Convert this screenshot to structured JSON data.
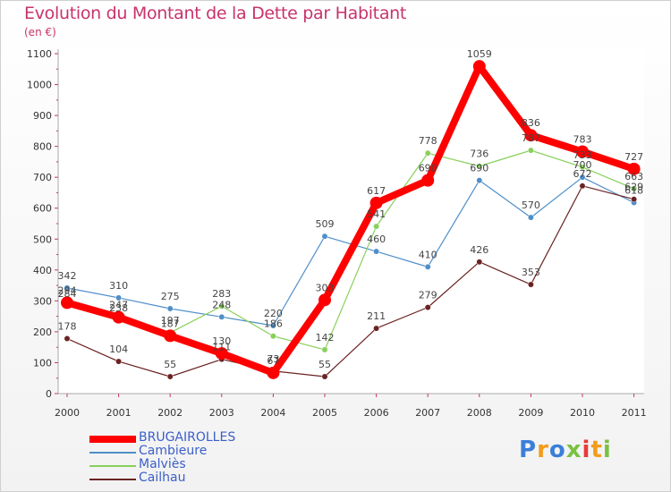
{
  "header": {
    "title": "Evolution du Montant de la Dette par Habitant",
    "subtitle": "(en €)"
  },
  "logo": {
    "text": "Proxiti",
    "colors": [
      "#3b7fd9",
      "#f39c1b",
      "#3b7fd9",
      "#7ac142",
      "#e63b3b",
      "#f39c1b",
      "#7ac142"
    ]
  },
  "chart_data": {
    "type": "line",
    "title": "Evolution du Montant de la Dette par Habitant",
    "subtitle": "(en €)",
    "xlabel": "",
    "ylabel": "",
    "ylim": [
      0,
      1100
    ],
    "yticks": [
      0,
      100,
      200,
      300,
      400,
      500,
      600,
      700,
      800,
      900,
      1000,
      1100
    ],
    "categories": [
      "2000",
      "2001",
      "2002",
      "2003",
      "2004",
      "2005",
      "2006",
      "2007",
      "2008",
      "2009",
      "2010",
      "2011"
    ],
    "grid": false,
    "legend": "bottom-left",
    "series": [
      {
        "name": "BRUGAIROLLES",
        "color": "#ff0000",
        "values": [
          294,
          247,
          187,
          130,
          67,
          303,
          617,
          690,
          1059,
          836,
          783,
          727
        ]
      },
      {
        "name": "Cambieure",
        "color": "#4f8fc9",
        "values": [
          342,
          310,
          275,
          248,
          220,
          509,
          460,
          410,
          690,
          570,
          700,
          618
        ]
      },
      {
        "name": "Malviès",
        "color": "#88d05a",
        "values": [
          284,
          238,
          197,
          283,
          186,
          142,
          541,
          778,
          736,
          787,
          733,
          663
        ]
      },
      {
        "name": "Cailhau",
        "color": "#6b2222",
        "values": [
          178,
          104,
          55,
          111,
          73,
          55,
          211,
          279,
          426,
          353,
          672,
          629
        ]
      }
    ]
  }
}
